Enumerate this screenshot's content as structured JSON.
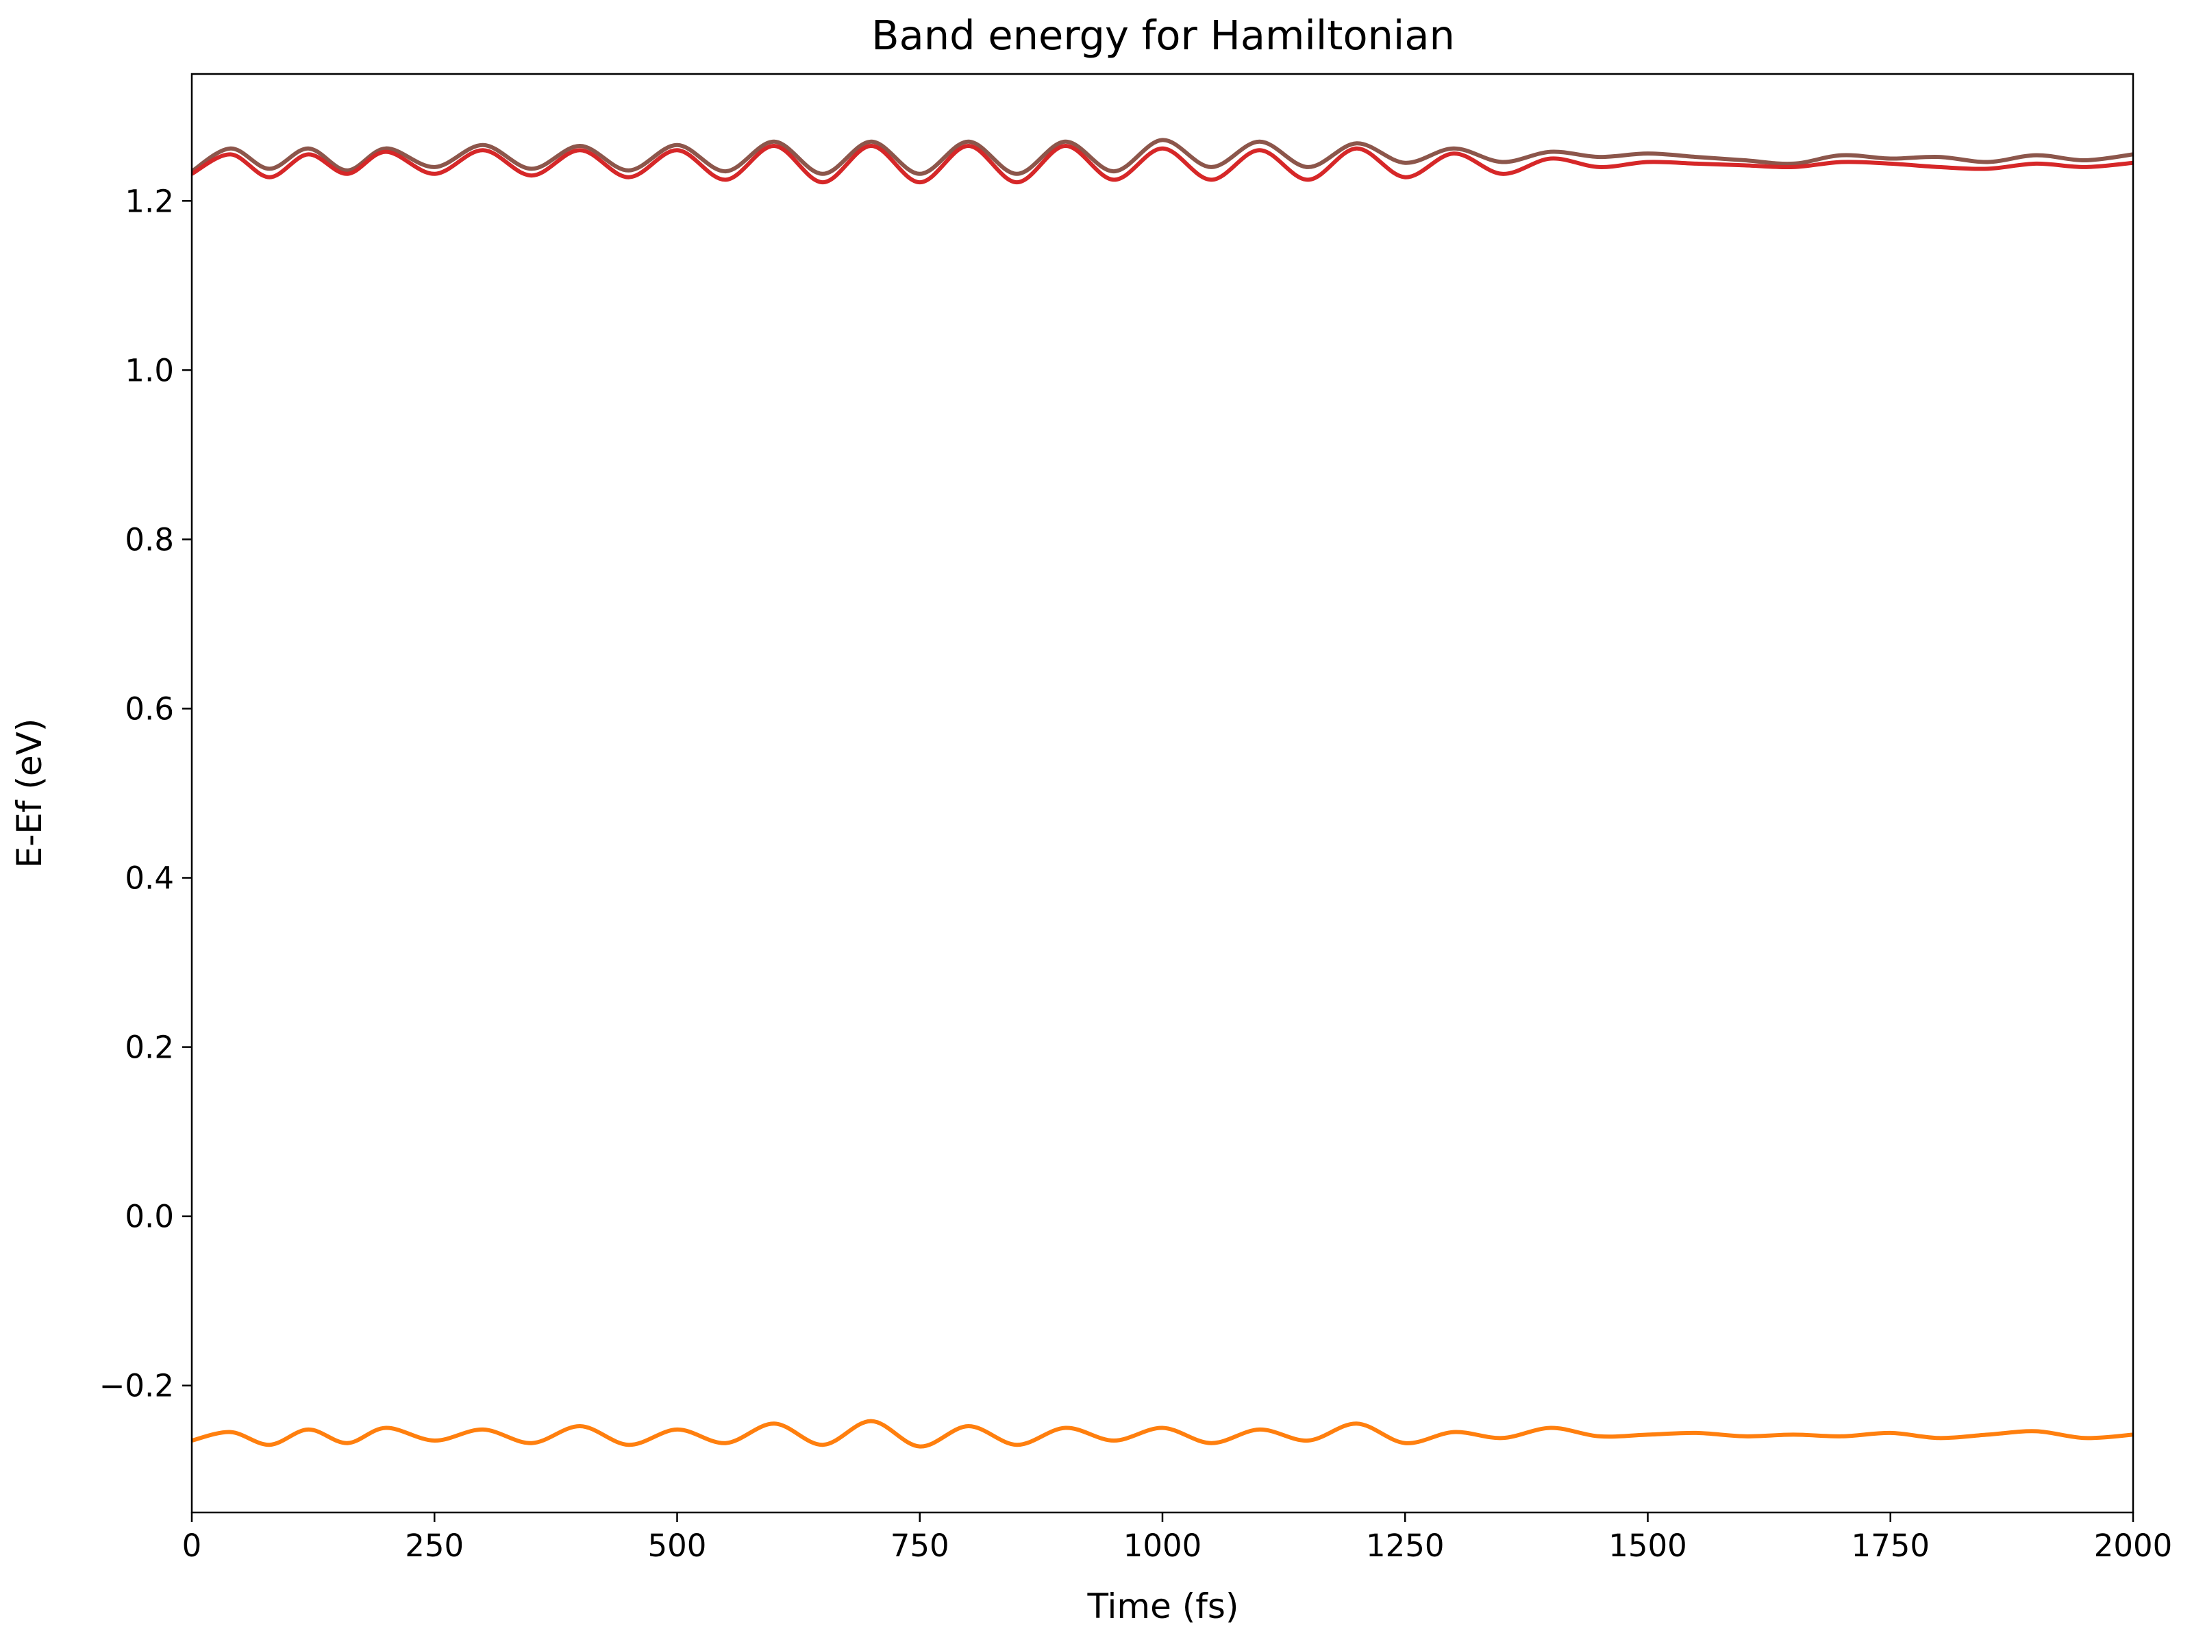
{
  "chart_data": {
    "type": "line",
    "title": "Band energy for Hamiltonian",
    "xlabel": "Time (fs)",
    "ylabel": "E-Ef (eV)",
    "xlim": [
      0,
      2000
    ],
    "ylim": [
      -0.35,
      1.35
    ],
    "grid": false,
    "x_ticks": [
      0,
      250,
      500,
      750,
      1000,
      1250,
      1500,
      1750,
      2000
    ],
    "x_tick_labels": [
      "0",
      "250",
      "500",
      "750",
      "1000",
      "1250",
      "1500",
      "1750",
      "2000"
    ],
    "y_ticks": [
      -0.2,
      0.0,
      0.2,
      0.4,
      0.6,
      0.8,
      1.0,
      1.2
    ],
    "y_tick_labels": [
      "−0.2",
      "0.0",
      "0.2",
      "0.4",
      "0.6",
      "0.8",
      "1.0",
      "1.2"
    ],
    "series": [
      {
        "color": "#8c564b",
        "x": [
          0,
          40,
          80,
          120,
          160,
          200,
          250,
          300,
          350,
          400,
          450,
          500,
          550,
          600,
          650,
          700,
          750,
          800,
          850,
          900,
          950,
          1000,
          1050,
          1100,
          1150,
          1200,
          1250,
          1300,
          1350,
          1400,
          1450,
          1500,
          1550,
          1600,
          1650,
          1700,
          1750,
          1800,
          1850,
          1900,
          1950,
          2000
        ],
        "y": [
          1.235,
          1.262,
          1.238,
          1.262,
          1.236,
          1.262,
          1.24,
          1.266,
          1.238,
          1.265,
          1.236,
          1.266,
          1.235,
          1.27,
          1.232,
          1.27,
          1.232,
          1.27,
          1.232,
          1.27,
          1.235,
          1.272,
          1.24,
          1.27,
          1.24,
          1.268,
          1.245,
          1.262,
          1.246,
          1.258,
          1.252,
          1.256,
          1.252,
          1.248,
          1.244,
          1.254,
          1.25,
          1.252,
          1.246,
          1.254,
          1.248,
          1.255
        ]
      },
      {
        "color": "#d62728",
        "x": [
          0,
          40,
          80,
          120,
          160,
          200,
          250,
          300,
          350,
          400,
          450,
          500,
          550,
          600,
          650,
          700,
          750,
          800,
          850,
          900,
          950,
          1000,
          1050,
          1100,
          1150,
          1200,
          1250,
          1300,
          1350,
          1400,
          1450,
          1500,
          1550,
          1600,
          1650,
          1700,
          1750,
          1800,
          1850,
          1900,
          1950,
          2000
        ],
        "y": [
          1.232,
          1.255,
          1.228,
          1.255,
          1.232,
          1.258,
          1.232,
          1.26,
          1.23,
          1.26,
          1.228,
          1.26,
          1.225,
          1.265,
          1.222,
          1.265,
          1.222,
          1.265,
          1.222,
          1.265,
          1.225,
          1.262,
          1.225,
          1.26,
          1.225,
          1.262,
          1.228,
          1.256,
          1.232,
          1.25,
          1.24,
          1.246,
          1.244,
          1.242,
          1.24,
          1.246,
          1.244,
          1.24,
          1.238,
          1.244,
          1.24,
          1.245
        ]
      },
      {
        "color": "#ff7f0e",
        "x": [
          0,
          40,
          80,
          120,
          160,
          200,
          250,
          300,
          350,
          400,
          450,
          500,
          550,
          600,
          650,
          700,
          750,
          800,
          850,
          900,
          950,
          1000,
          1050,
          1100,
          1150,
          1200,
          1250,
          1300,
          1350,
          1400,
          1450,
          1500,
          1550,
          1600,
          1650,
          1700,
          1750,
          1800,
          1850,
          1900,
          1950,
          2000
        ],
        "y": [
          -0.265,
          -0.255,
          -0.27,
          -0.252,
          -0.268,
          -0.25,
          -0.265,
          -0.252,
          -0.268,
          -0.248,
          -0.27,
          -0.252,
          -0.268,
          -0.245,
          -0.27,
          -0.242,
          -0.272,
          -0.248,
          -0.27,
          -0.25,
          -0.265,
          -0.25,
          -0.268,
          -0.252,
          -0.265,
          -0.245,
          -0.268,
          -0.255,
          -0.262,
          -0.25,
          -0.26,
          -0.258,
          -0.256,
          -0.26,
          -0.258,
          -0.26,
          -0.256,
          -0.262,
          -0.258,
          -0.254,
          -0.262,
          -0.258
        ]
      }
    ]
  }
}
